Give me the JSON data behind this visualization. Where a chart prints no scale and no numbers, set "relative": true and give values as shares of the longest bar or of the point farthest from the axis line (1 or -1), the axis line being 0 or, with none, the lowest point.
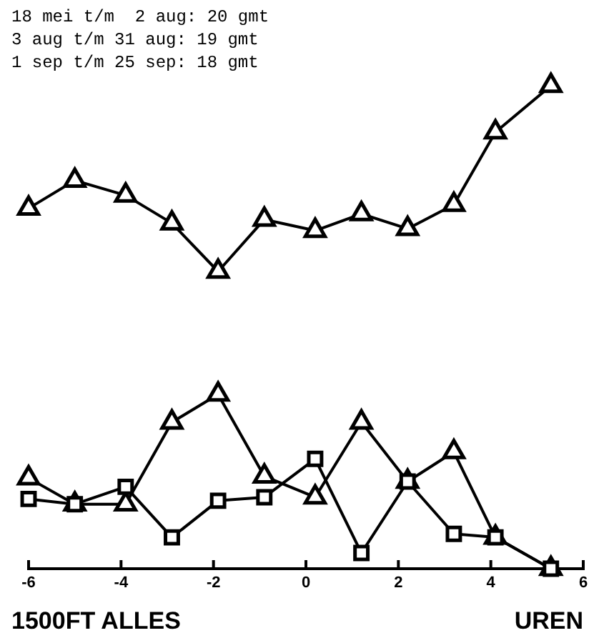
{
  "chart_data": [
    {
      "type": "line",
      "x": [
        -6,
        -5,
        -3.9,
        -2.9,
        -1.9,
        -0.9,
        0.2,
        1.2,
        2.2,
        3.2,
        4.1,
        5.3
      ],
      "xlim": [
        -6,
        6
      ],
      "relative": true,
      "tick_labels": false,
      "marker": "triangle",
      "line_style": "solid",
      "series": [
        {
          "color": "#000000",
          "values": [
            0.34,
            0.49,
            0.41,
            0.26,
            0,
            0.28,
            0.22,
            0.31,
            0.23,
            0.36,
            0.75,
            1
          ]
        }
      ],
      "annotations": [
        "18 mei t/m  2 aug: 20 gmt",
        "3 aug t/m 31 aug: 19 gmt",
        "1 sep t/m 25 sep: 18 gmt"
      ]
    },
    {
      "type": "line",
      "x": [
        -6,
        -5,
        -3.9,
        -2.9,
        -1.9,
        -0.9,
        0.2,
        1.2,
        2.2,
        3.2,
        4.1,
        5.3
      ],
      "xlim": [
        -6,
        6
      ],
      "xticks": [
        -6,
        -4,
        -2,
        0,
        2,
        4,
        6
      ],
      "relative": true,
      "xlabel": "UREN",
      "line_style": "solid",
      "series": [
        {
          "color": "#000000",
          "marker": "triangle",
          "values": [
            0.52,
            0.37,
            0.37,
            0.84,
            1,
            0.53,
            0.41,
            0.84,
            0.5,
            0.67,
            0.18,
            0
          ]
        },
        {
          "color": "#000000",
          "marker": "square",
          "values": [
            0.4,
            0.37,
            0.47,
            0.18,
            0.39,
            0.41,
            0.63,
            0.09,
            0.5,
            0.2,
            0.18,
            0
          ]
        }
      ],
      "annotations": [
        "1500FT ALLES"
      ]
    }
  ]
}
